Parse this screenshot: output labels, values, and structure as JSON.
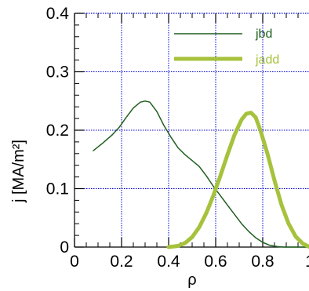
{
  "chart_data": {
    "type": "line",
    "xlabel": "ρ",
    "ylabel": "j [MA/m²]",
    "xlim": [
      0,
      1
    ],
    "ylim": [
      0,
      0.4
    ],
    "x_ticks": [
      "0",
      "0.2",
      "0.4",
      "0.6",
      "0.8",
      "1"
    ],
    "y_ticks": [
      "0",
      "0.1",
      "0.2",
      "0.3",
      "0.4"
    ],
    "grid": true,
    "legend_position": "top-right",
    "series": [
      {
        "name": "jbd",
        "color": "#1f5f1f",
        "line": "thin",
        "x": [
          0.08,
          0.12,
          0.16,
          0.19,
          0.22,
          0.25,
          0.28,
          0.3,
          0.32,
          0.35,
          0.38,
          0.41,
          0.44,
          0.47,
          0.5,
          0.53,
          0.56,
          0.59,
          0.62,
          0.65,
          0.68,
          0.71,
          0.74,
          0.77,
          0.8,
          0.83,
          0.86,
          0.89,
          0.92,
          0.95,
          1.0
        ],
        "y": [
          0.165,
          0.178,
          0.192,
          0.205,
          0.222,
          0.238,
          0.248,
          0.25,
          0.248,
          0.232,
          0.208,
          0.188,
          0.17,
          0.158,
          0.148,
          0.138,
          0.122,
          0.104,
          0.088,
          0.072,
          0.056,
          0.04,
          0.027,
          0.016,
          0.008,
          0.003,
          0.001,
          0.0,
          0.0,
          0.0,
          0.0
        ]
      },
      {
        "name": "jadd",
        "color": "#a6c23c",
        "line": "thick",
        "x": [
          0.4,
          0.44,
          0.47,
          0.5,
          0.53,
          0.56,
          0.59,
          0.62,
          0.65,
          0.68,
          0.71,
          0.73,
          0.75,
          0.77,
          0.79,
          0.82,
          0.85,
          0.88,
          0.91,
          0.94,
          0.97,
          1.0
        ],
        "y": [
          0.0,
          0.002,
          0.007,
          0.017,
          0.034,
          0.058,
          0.088,
          0.122,
          0.158,
          0.192,
          0.218,
          0.228,
          0.23,
          0.222,
          0.2,
          0.16,
          0.114,
          0.072,
          0.04,
          0.018,
          0.006,
          0.0
        ]
      }
    ]
  }
}
